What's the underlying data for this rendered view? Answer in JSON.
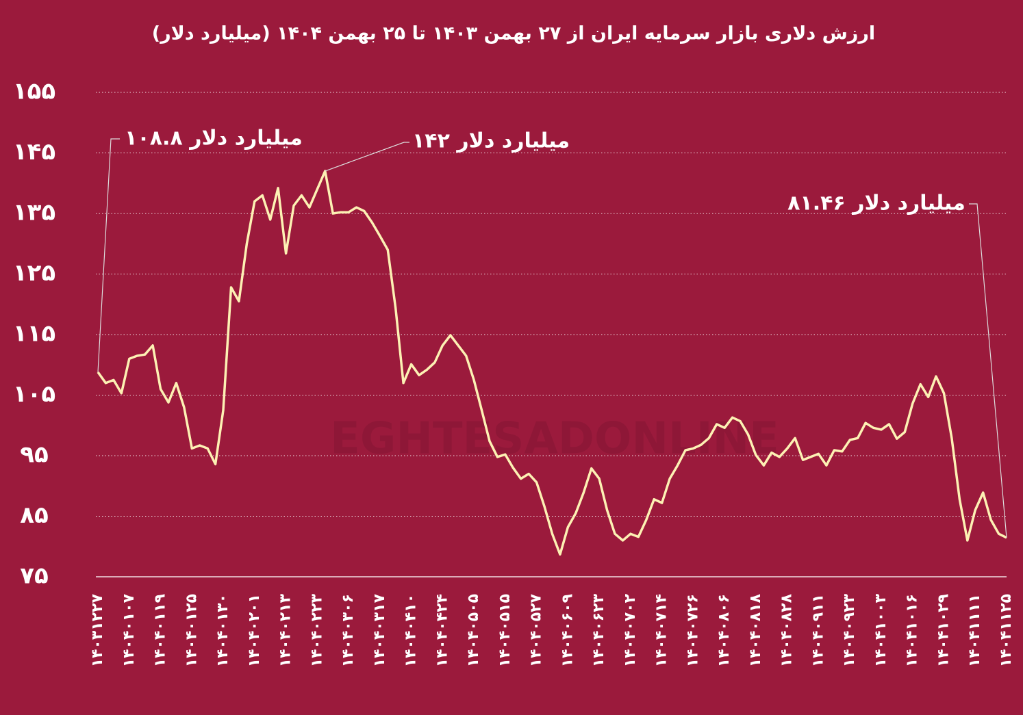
{
  "chart_data": {
    "type": "line",
    "title": "ارزش دلاری بازار سرمایه ایران از ۲۷ بهمن ۱۴۰۳ تا ۲۵ بهمن ۱۴۰۴ (میلیارد دلار)",
    "watermark": "EGHTESADONLINE",
    "annotations": [
      "۱۰۸.۸ میلیارد دلار",
      "۱۴۲ میلیارد دلار",
      "۸۱.۴۶ میلیارد دلار"
    ],
    "categories": [
      "۱۴۰۳۱۲۲۷",
      null,
      null,
      null,
      "۱۴۰۴۰۱۰۷",
      null,
      null,
      null,
      "۱۴۰۴۰۱۱۹",
      null,
      null,
      null,
      "۱۴۰۴۰۱۲۵",
      null,
      null,
      null,
      "۱۴۰۴۰۱۳۰",
      null,
      null,
      null,
      "۱۴۰۴۰۲۰۱",
      null,
      null,
      null,
      "۱۴۰۴۰۲۱۳",
      null,
      null,
      null,
      "۱۴۰۴۰۲۲۳",
      null,
      null,
      null,
      "۱۴۰۴۰۳۰۶",
      null,
      null,
      null,
      "۱۴۰۴۰۳۱۷",
      null,
      null,
      null,
      "۱۴۰۴۰۴۱۰",
      null,
      null,
      null,
      "۱۴۰۴۰۴۲۴",
      null,
      null,
      null,
      "۱۴۰۴۰۵۰۵",
      null,
      null,
      null,
      "۱۴۰۴۰۵۱۵",
      null,
      null,
      null,
      "۱۴۰۴۰۵۲۷",
      null,
      null,
      null,
      "۱۴۰۴۰۶۰۹",
      null,
      null,
      null,
      "۱۴۰۴۰۶۲۳",
      null,
      null,
      null,
      "۱۴۰۴۰۷۰۲",
      null,
      null,
      null,
      "۱۴۰۴۰۷۱۴",
      null,
      null,
      null,
      "۱۴۰۴۰۷۲۶",
      null,
      null,
      null,
      "۱۴۰۴۰۸۰۶",
      null,
      null,
      null,
      "۱۴۰۴۰۸۱۸",
      null,
      null,
      null,
      "۱۴۰۴۰۸۲۸",
      null,
      null,
      null,
      "۱۴۰۴۰۹۱۱",
      null,
      null,
      null,
      "۱۴۰۴۰۹۲۳",
      null,
      null,
      null,
      "۱۴۰۴۱۰۰۳",
      null,
      null,
      null,
      "۱۴۰۴۱۰۱۶",
      null,
      null,
      null,
      "۱۴۰۴۱۰۲۹",
      null,
      null,
      null,
      "۱۴۰۴۱۱۱۱",
      null,
      null,
      null,
      "۱۴۰۴۱۱۲۵"
    ],
    "values": [
      108.8,
      107,
      107.5,
      105.3,
      111,
      111.5,
      111.7,
      113.2,
      106,
      103.8,
      107,
      103,
      96.2,
      96.7,
      96.2,
      93.6,
      102.5,
      122.8,
      120.5,
      130,
      137,
      138,
      134,
      139.2,
      128.4,
      136.3,
      138,
      136,
      139,
      142,
      135,
      135.2,
      135.2,
      136,
      135.4,
      133.5,
      131.3,
      129,
      119.4,
      107,
      110.1,
      108.3,
      109.2,
      110.4,
      113.2,
      114.9,
      113.2,
      111.5,
      107.5,
      102.5,
      97.4,
      94.8,
      95.2,
      93,
      91.2,
      92,
      90.6,
      86.6,
      82.1,
      78.7,
      83.2,
      85.5,
      88.9,
      92.9,
      91.2,
      86,
      82.1,
      81,
      82.1,
      81.6,
      84.4,
      87.8,
      87.2,
      91.2,
      93.4,
      95.9,
      96.2,
      96.8,
      97.9,
      100.2,
      99.6,
      101.3,
      100.7,
      98.5,
      95.1,
      93.4,
      95.5,
      94.8,
      96.2,
      97.9,
      94.3,
      94.8,
      95.3,
      93.4,
      95.9,
      95.7,
      97.6,
      97.9,
      100.4,
      99.6,
      99.3,
      100.2,
      97.8,
      98.9,
      103.6,
      106.8,
      104.7,
      108.1,
      105.3,
      97.9,
      87.8,
      81,
      86,
      88.9,
      84.4,
      82.1,
      81.46
    ],
    "color": "#fdf1b4",
    "ylim": [
      75,
      155
    ],
    "yticks": [
      {
        "value": 75,
        "label": "۷۵"
      },
      {
        "value": 85,
        "label": "۸۵"
      },
      {
        "value": 95,
        "label": "۹۵"
      },
      {
        "value": 105,
        "label": "۱۰۵"
      },
      {
        "value": 115,
        "label": "۱۱۵"
      },
      {
        "value": 125,
        "label": "۱۲۵"
      },
      {
        "value": 135,
        "label": "۱۳۵"
      },
      {
        "value": 145,
        "label": "۱۴۵"
      },
      {
        "value": 155,
        "label": "۱۵۵"
      }
    ],
    "grid": true
  }
}
